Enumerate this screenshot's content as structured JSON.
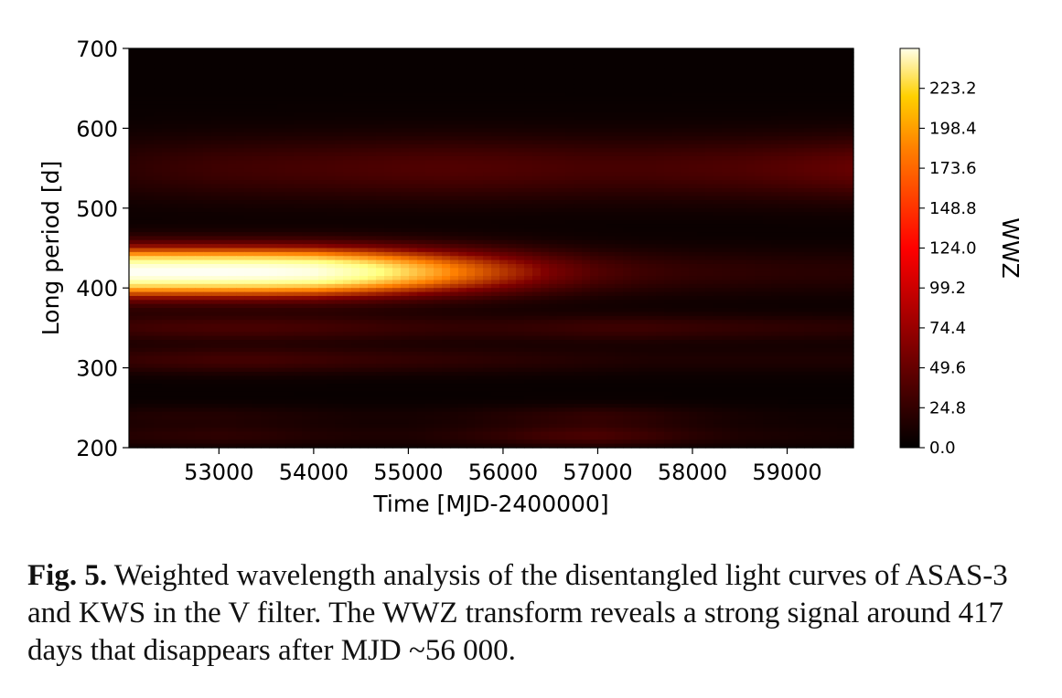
{
  "chart_data": {
    "type": "heatmap",
    "xlabel": "Time [MJD-2400000]",
    "ylabel": "Long period [d]",
    "xlim": [
      52050,
      59700
    ],
    "ylim": [
      200,
      700
    ],
    "xticks": [
      "53000",
      "54000",
      "55000",
      "56000",
      "57000",
      "58000",
      "59000"
    ],
    "xtick_values": [
      53000,
      54000,
      55000,
      56000,
      57000,
      58000,
      59000
    ],
    "yticks": [
      "200",
      "300",
      "400",
      "500",
      "600",
      "700"
    ],
    "ytick_values": [
      200,
      300,
      400,
      500,
      600,
      700
    ],
    "colormap": "afmhot",
    "colorbar": {
      "label": "WWZ",
      "range": [
        0.0,
        248
      ],
      "ticks": [
        "0.0",
        "24.8",
        "49.6",
        "74.4",
        "99.2",
        "124.0",
        "148.8",
        "173.6",
        "198.4",
        "223.2"
      ],
      "tick_values": [
        0.0,
        24.8,
        49.6,
        74.4,
        99.2,
        124.0,
        148.8,
        173.6,
        198.4,
        223.2
      ]
    },
    "time_grid": [
      52050,
      52500,
      53000,
      53500,
      54000,
      54500,
      55000,
      55500,
      56000,
      56500,
      57000,
      57500,
      58000,
      58500,
      59000,
      59700
    ],
    "features": [
      {
        "period": 420,
        "amplitude": [
          240,
          240,
          240,
          238,
          230,
          200,
          160,
          120,
          85,
          55,
          35,
          25,
          20,
          18,
          16,
          15
        ],
        "width": 20
      },
      {
        "period": 550,
        "amplitude": [
          18,
          22,
          26,
          28,
          30,
          32,
          34,
          35,
          34,
          32,
          30,
          30,
          32,
          34,
          38,
          45
        ],
        "width": 28
      },
      {
        "period": 350,
        "amplitude": [
          25,
          28,
          30,
          30,
          28,
          25,
          22,
          20,
          20,
          22,
          25,
          25,
          22,
          20,
          18,
          16
        ],
        "width": 12
      },
      {
        "period": 310,
        "amplitude": [
          22,
          25,
          28,
          28,
          25,
          22,
          20,
          18,
          16,
          14,
          12,
          10,
          10,
          10,
          10,
          10
        ],
        "width": 12
      },
      {
        "period": 215,
        "amplitude": [
          14,
          16,
          18,
          16,
          12,
          10,
          10,
          14,
          20,
          28,
          32,
          25,
          16,
          10,
          8,
          6
        ],
        "width": 10
      },
      {
        "period": 240,
        "amplitude": [
          10,
          12,
          12,
          10,
          8,
          6,
          6,
          8,
          12,
          16,
          20,
          16,
          10,
          6,
          4,
          4
        ],
        "width": 9
      }
    ]
  },
  "caption": {
    "lead": "Fig. 5.",
    "text": " Weighted wavelength analysis of the disentangled light curves of ASAS-3 and KWS in the V filter. The WWZ transform reveals a strong signal around 417 days that disappears after MJD ~56 000."
  }
}
